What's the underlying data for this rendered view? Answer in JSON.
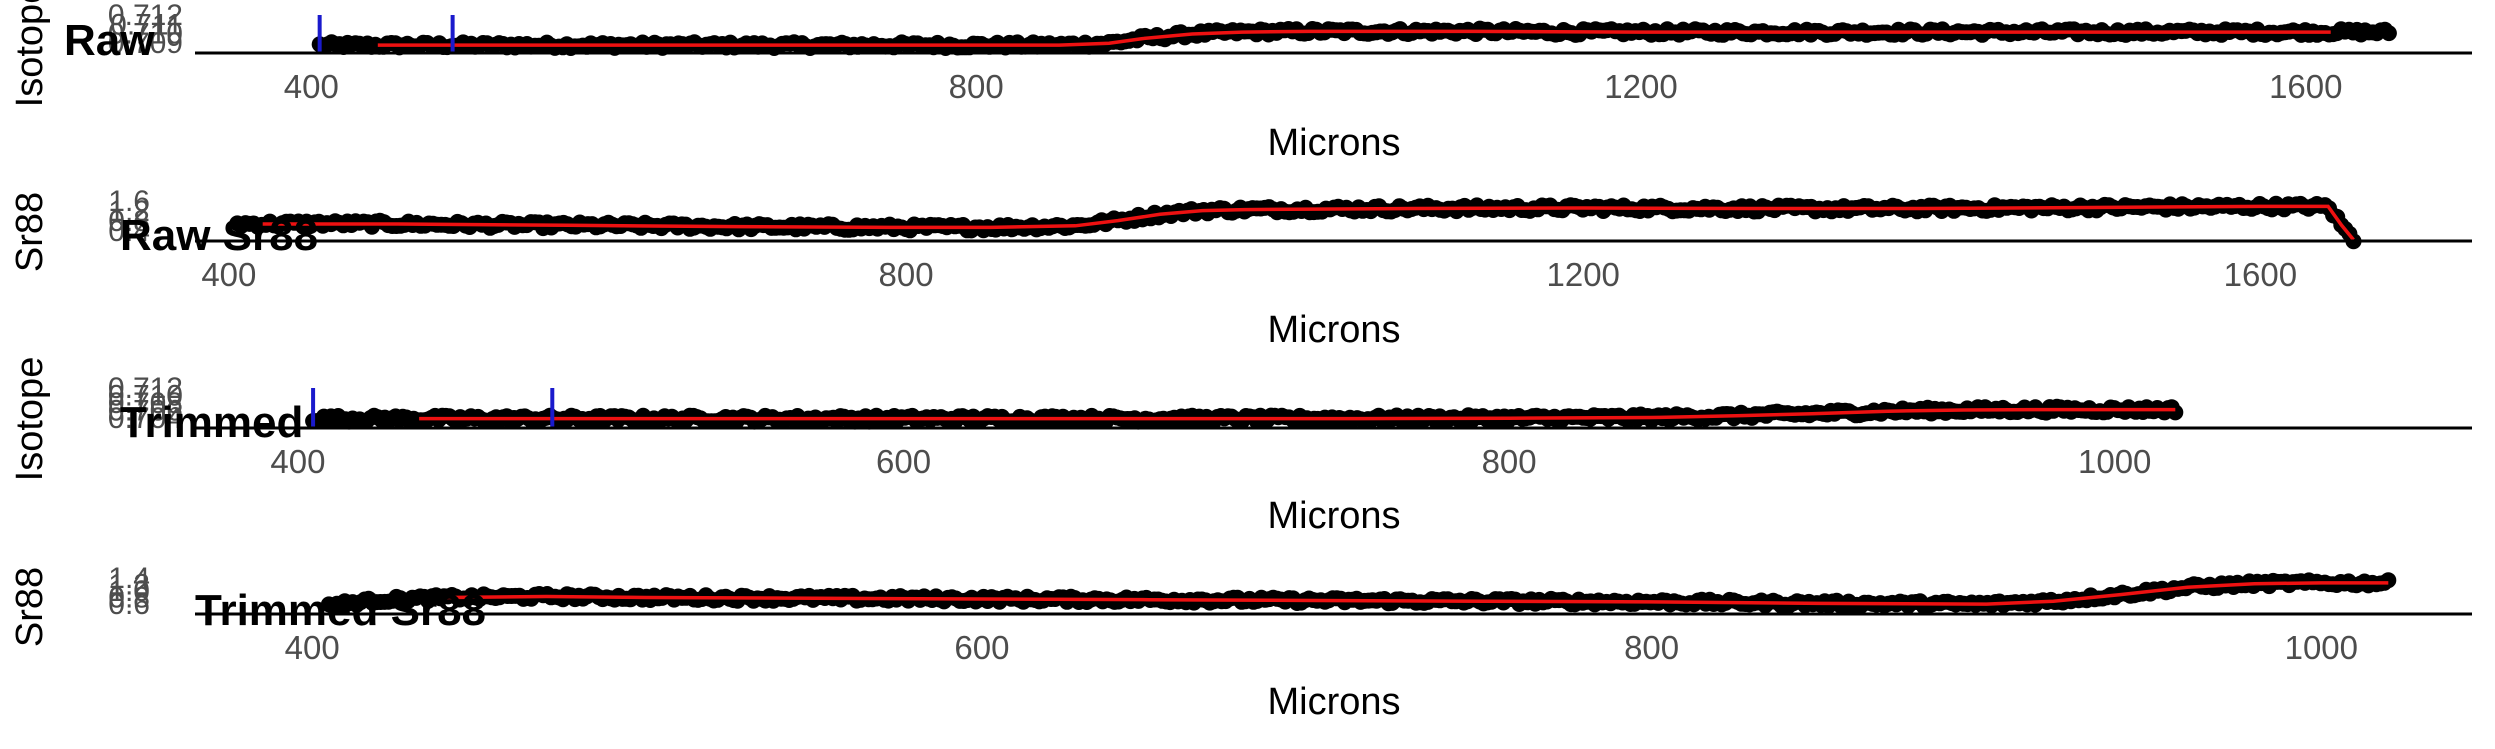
{
  "colors": {
    "points": "#000000",
    "fit_line": "#ee1111",
    "marker": "#1a1acc",
    "axis": "#000000",
    "tick_label": "#4d4d4d",
    "title": "#000000"
  },
  "chart_data": [
    {
      "type": "scatter",
      "title": "Raw",
      "xlabel": "Microns",
      "ylabel": "Isotope",
      "xlim": [
        330,
        1700
      ],
      "ylim": [
        0.7085,
        0.714
      ],
      "x_ticks": [
        400,
        800,
        1200,
        1600
      ],
      "x_tick_labels": [
        "400",
        "800",
        "1200",
        "1600"
      ],
      "y_tick_labels": [
        "0.712",
        "0.711",
        "0.710",
        "0.709"
      ],
      "x_range": [
        405,
        1650
      ],
      "vlines": [
        405,
        485
      ],
      "series": [
        {
          "role": "points",
          "x": [
            405,
            450,
            500,
            550,
            600,
            650,
            700,
            750,
            800,
            850,
            880,
            900,
            930,
            960,
            1000,
            1050,
            1100,
            1150,
            1200,
            1250,
            1300,
            1350,
            1400,
            1450,
            1500,
            1550,
            1600,
            1650
          ],
          "values": [
            0.7097,
            0.7097,
            0.7097,
            0.7097,
            0.7097,
            0.7097,
            0.7097,
            0.7097,
            0.7097,
            0.7097,
            0.71,
            0.7107,
            0.7114,
            0.7117,
            0.7118,
            0.7118,
            0.7118,
            0.7117,
            0.7117,
            0.7117,
            0.7117,
            0.7117,
            0.7117,
            0.7117,
            0.7117,
            0.7117,
            0.7117,
            0.7117
          ]
        },
        {
          "role": "fit",
          "x": [
            440,
            500,
            550,
            600,
            650,
            700,
            750,
            800,
            850,
            880,
            900,
            930,
            960,
            1000,
            1100,
            1200,
            1300,
            1400,
            1500,
            1615
          ],
          "values": [
            0.7097,
            0.7097,
            0.7097,
            0.7097,
            0.7097,
            0.7097,
            0.7097,
            0.7097,
            0.7097,
            0.71,
            0.7107,
            0.7114,
            0.7117,
            0.7118,
            0.7118,
            0.7117,
            0.7117,
            0.7117,
            0.7117,
            0.7117
          ]
        }
      ]
    },
    {
      "type": "scatter",
      "title": "Raw Sr88",
      "xlabel": "Microns",
      "ylabel": "Sr88",
      "xlim": [
        380,
        1725
      ],
      "ylim": [
        0.3,
        1.75
      ],
      "x_ticks": [
        400,
        800,
        1200,
        1600
      ],
      "x_tick_labels": [
        "400",
        "800",
        "1200",
        "1600"
      ],
      "y_tick_labels": [
        "1.6",
        "1.2",
        "0.8",
        "0.4"
      ],
      "x_range": [
        405,
        1655
      ],
      "vlines": [],
      "series": [
        {
          "role": "points",
          "x": [
            405,
            450,
            500,
            550,
            600,
            650,
            700,
            750,
            800,
            850,
            900,
            925,
            950,
            975,
            1000,
            1050,
            1100,
            1150,
            1200,
            1250,
            1300,
            1350,
            1400,
            1450,
            1500,
            1550,
            1600,
            1640,
            1648,
            1655
          ],
          "values": [
            0.95,
            0.97,
            0.95,
            0.92,
            0.9,
            0.88,
            0.85,
            0.83,
            0.82,
            0.82,
            0.88,
            1.08,
            1.32,
            1.46,
            1.5,
            1.52,
            1.54,
            1.55,
            1.56,
            1.55,
            1.54,
            1.53,
            1.54,
            1.56,
            1.58,
            1.6,
            1.62,
            1.62,
            0.9,
            0.35
          ]
        },
        {
          "role": "fit",
          "x": [
            420,
            500,
            600,
            700,
            800,
            850,
            900,
            925,
            950,
            975,
            1000,
            1100,
            1200,
            1300,
            1400,
            1500,
            1600,
            1640,
            1648,
            1655
          ],
          "values": [
            0.95,
            0.95,
            0.9,
            0.85,
            0.82,
            0.82,
            0.88,
            1.08,
            1.32,
            1.46,
            1.5,
            1.54,
            1.56,
            1.54,
            1.54,
            1.58,
            1.62,
            1.62,
            0.9,
            0.35
          ]
        }
      ]
    },
    {
      "type": "scatter",
      "title": "Trimmed",
      "xlabel": "Microns",
      "ylabel": "Isotope",
      "xlim": [
        366,
        1118
      ],
      "ylim": [
        0.7039,
        0.7132
      ],
      "x_ticks": [
        400,
        600,
        800,
        1000
      ],
      "x_tick_labels": [
        "400",
        "600",
        "800",
        "1000"
      ],
      "y_tick_labels": [
        "0.712",
        "0.710",
        "0.708",
        "0.706",
        "0.704"
      ],
      "x_range": [
        405,
        1020
      ],
      "vlines": [
        405,
        484
      ],
      "series": [
        {
          "role": "points",
          "x": [
            405,
            450,
            500,
            550,
            600,
            650,
            700,
            750,
            800,
            850,
            875,
            900,
            925,
            950,
            975,
            1000,
            1020
          ],
          "values": [
            0.7062,
            0.7062,
            0.7062,
            0.7062,
            0.7062,
            0.7062,
            0.7062,
            0.7062,
            0.7063,
            0.7065,
            0.7069,
            0.7074,
            0.708,
            0.7083,
            0.7084,
            0.7084,
            0.7084
          ]
        },
        {
          "role": "fit",
          "x": [
            440,
            500,
            550,
            600,
            650,
            700,
            750,
            800,
            850,
            875,
            900,
            925,
            950,
            975,
            1000,
            1020
          ],
          "values": [
            0.7062,
            0.7062,
            0.7062,
            0.7062,
            0.7062,
            0.7062,
            0.7062,
            0.7063,
            0.7065,
            0.7069,
            0.7074,
            0.708,
            0.7083,
            0.7084,
            0.7084,
            0.7084
          ]
        }
      ]
    },
    {
      "type": "scatter",
      "title": "Trimmed Sr88",
      "xlabel": "Microns",
      "ylabel": "Sr88",
      "xlim": [
        365,
        1045
      ],
      "ylim": [
        0.55,
        1.48
      ],
      "x_ticks": [
        400,
        600,
        800,
        1000
      ],
      "x_tick_labels": [
        "400",
        "600",
        "800",
        "1000"
      ],
      "y_tick_labels": [
        "1.4",
        "1.2",
        "1.0",
        "0.8",
        "0.6"
      ],
      "x_range": [
        405,
        1020
      ],
      "vlines": [],
      "series": [
        {
          "role": "points",
          "x": [
            405,
            420,
            440,
            470,
            500,
            550,
            600,
            650,
            700,
            750,
            800,
            850,
            900,
            920,
            940,
            960,
            980,
            1000,
            1020
          ],
          "values": [
            0.8,
            0.93,
            1.0,
            1.03,
            1.0,
            0.98,
            0.96,
            0.94,
            0.92,
            0.9,
            0.88,
            0.84,
            0.82,
            0.9,
            1.08,
            1.28,
            1.38,
            1.4,
            1.4
          ]
        },
        {
          "role": "fit",
          "x": [
            440,
            470,
            500,
            550,
            600,
            650,
            700,
            750,
            800,
            850,
            900,
            920,
            940,
            960,
            980,
            1000,
            1020
          ],
          "values": [
            1.0,
            1.03,
            1.0,
            0.98,
            0.96,
            0.94,
            0.92,
            0.9,
            0.88,
            0.84,
            0.82,
            0.9,
            1.08,
            1.28,
            1.38,
            1.4,
            1.4
          ]
        }
      ]
    }
  ]
}
